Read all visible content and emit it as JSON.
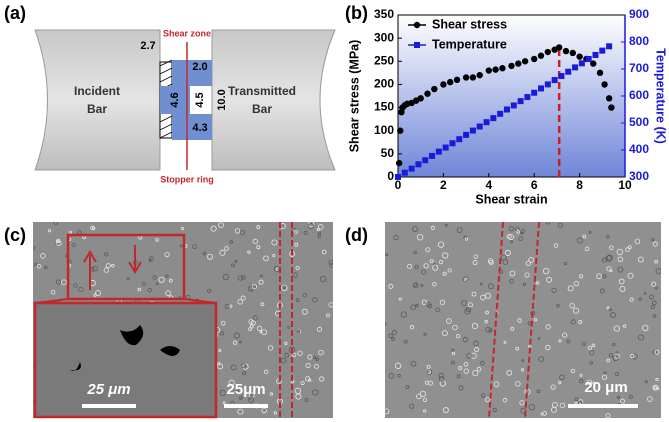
{
  "panel_labels": [
    "(a)",
    "(b)",
    "(c)",
    "(d)"
  ],
  "diagram": {
    "incident_bar": [
      "Incident",
      "Bar"
    ],
    "transmitted_bar": [
      "Transmitted",
      "Bar"
    ],
    "shear_zone": "Shear zone",
    "stopper_ring": "Stopper ring",
    "dimensions": [
      "2.7",
      "2.0",
      "4.6",
      "4.5",
      "10.0",
      "4.3"
    ]
  },
  "chart_data": {
    "type": "scatter",
    "xlabel": "Shear strain",
    "ylabel": "Shear stress (MPa)",
    "y2label": "Temperature (K)",
    "xlim": [
      0,
      10
    ],
    "xticks": [
      0,
      2,
      4,
      6,
      8,
      10
    ],
    "ylim": [
      0,
      350
    ],
    "yticks": [
      0,
      50,
      100,
      150,
      200,
      250,
      300,
      350
    ],
    "y2lim": [
      300,
      900
    ],
    "y2ticks": [
      300,
      400,
      500,
      600,
      700,
      800,
      900
    ],
    "legend": "upper left",
    "marker_x": 7.1,
    "marker_color": "#cc1f1f",
    "series": [
      {
        "name": "Shear stress",
        "color": "#000000",
        "marker": "circle",
        "x": [
          0.05,
          0.1,
          0.15,
          0.2,
          0.3,
          0.4,
          0.6,
          0.8,
          1,
          1.3,
          1.6,
          2,
          2.3,
          2.6,
          3,
          3.3,
          3.6,
          4,
          4.3,
          4.6,
          5,
          5.3,
          5.6,
          6,
          6.3,
          6.6,
          6.9,
          7.1,
          7.4,
          7.7,
          8,
          8.3,
          8.6,
          8.9,
          9.1,
          9.3,
          9.4
        ],
        "values": [
          30,
          100,
          140,
          150,
          155,
          158,
          160,
          165,
          170,
          180,
          190,
          200,
          205,
          210,
          215,
          215,
          220,
          230,
          232,
          235,
          240,
          245,
          250,
          255,
          262,
          270,
          275,
          280,
          272,
          268,
          260,
          255,
          245,
          225,
          200,
          170,
          150
        ]
      },
      {
        "name": "Temperature",
        "color": "#1a1adb",
        "marker": "square",
        "axis": "y2",
        "x": [
          0,
          0.3,
          0.6,
          0.9,
          1.2,
          1.5,
          1.8,
          2.1,
          2.4,
          2.7,
          3,
          3.3,
          3.6,
          3.9,
          4.2,
          4.5,
          4.8,
          5.1,
          5.4,
          5.7,
          6,
          6.3,
          6.6,
          6.9,
          7.2,
          7.5,
          7.8,
          8.1,
          8.4,
          8.7,
          9,
          9.3
        ],
        "values": [
          300,
          316,
          331,
          347,
          362,
          378,
          394,
          409,
          425,
          440,
          456,
          472,
          487,
          503,
          518,
          534,
          550,
          565,
          581,
          596,
          612,
          628,
          643,
          659,
          674,
          690,
          706,
          721,
          737,
          752,
          768,
          784
        ]
      }
    ]
  },
  "micrographs": {
    "c": {
      "inset_scale": "25 μm",
      "scale": "25μm"
    },
    "d": {
      "scale": "20 μm"
    }
  }
}
